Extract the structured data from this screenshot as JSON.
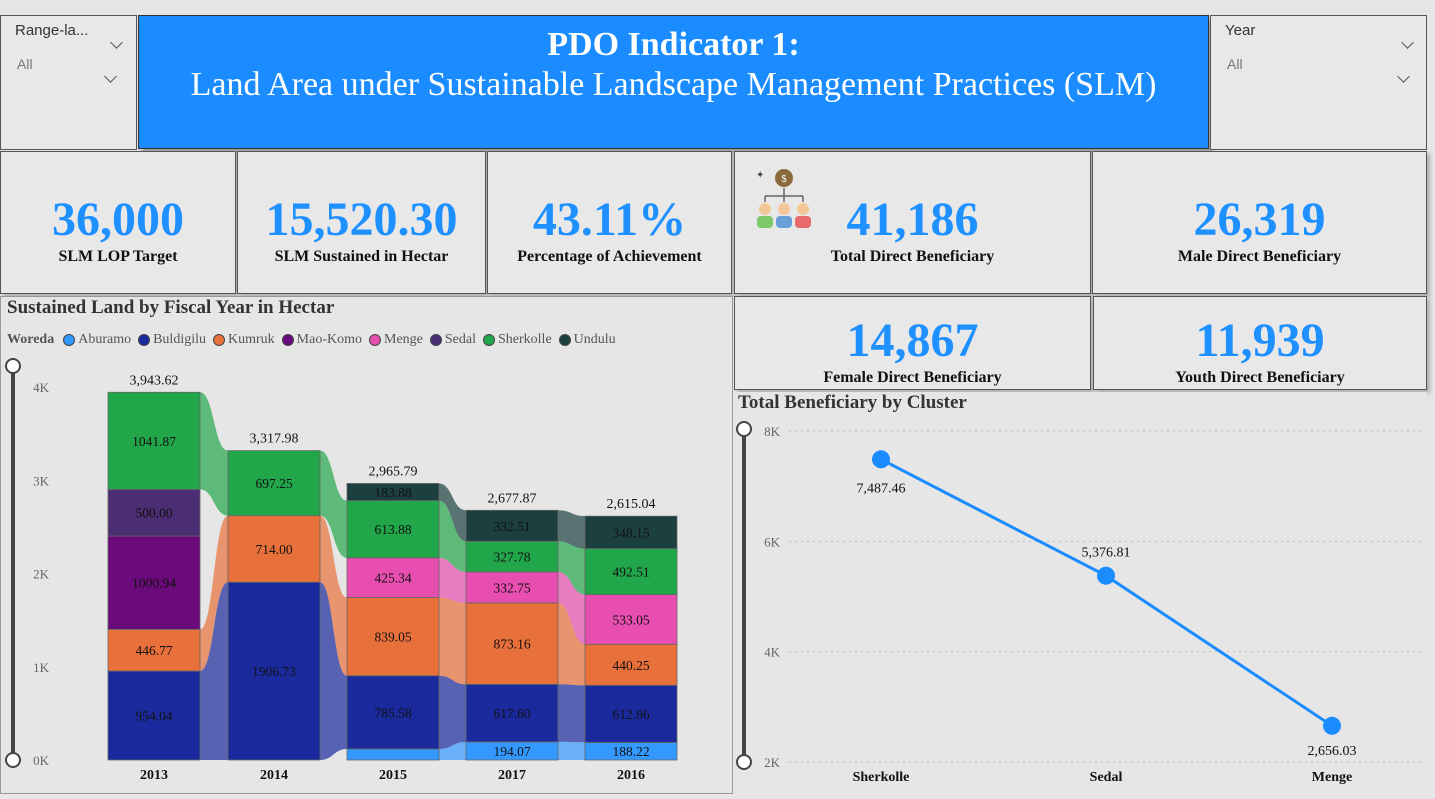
{
  "slicer_left": {
    "label": "Range-la...",
    "value": "All"
  },
  "slicer_right": {
    "label": "Year",
    "value": "All"
  },
  "header": {
    "line1": "PDO Indicator 1:",
    "line2": "Land Area under Sustainable Landscape Management Practices  (SLM)"
  },
  "kpis": {
    "lop_target": {
      "value": "36,000",
      "caption": "SLM LOP Target"
    },
    "sustained": {
      "value": "15,520.30",
      "caption": "SLM Sustained in Hectar"
    },
    "achievement": {
      "value": "43.11%",
      "caption": "Percentage of Achievement"
    },
    "total_benef": {
      "value": "41,186",
      "caption": "Total Direct Beneficiary",
      "icon": "beneficiary-group-icon"
    },
    "male_benef": {
      "value": "26,319",
      "caption": "Male Direct Beneficiary"
    },
    "female_benef": {
      "value": "14,867",
      "caption": "Female Direct Beneficiary"
    },
    "youth_benef": {
      "value": "11,939",
      "caption": "Youth Direct Beneficiary"
    }
  },
  "colors": {
    "accent": "#1a8cff",
    "Aburamo": "#3399ff",
    "Buldigilu": "#1a2a9c",
    "Kumruk": "#e8703a",
    "Mao-Komo": "#6b0a7a",
    "Menge": "#e84eb0",
    "Sedal": "#4a2d73",
    "Sherkolle": "#22a64a",
    "Undulu": "#1c4040"
  },
  "chart_data": [
    {
      "type": "bar",
      "stacked": true,
      "title": "Sustained Land by Fiscal Year in Hectar",
      "legend_title": "Woreda",
      "legend_position": "top-left",
      "categories": [
        "2013",
        "2014",
        "2015",
        "2017",
        "2016"
      ],
      "totals": [
        "3,943.62",
        "3,317.98",
        "2,965.79",
        "2,677.87",
        "2,615.04"
      ],
      "y_ticks": [
        "0K",
        "1K",
        "2K",
        "3K",
        "4K"
      ],
      "ylim": [
        0,
        4000
      ],
      "series": [
        {
          "name": "Aburamo",
          "values": [
            0,
            0,
            118.06,
            194.07,
            188.22
          ],
          "labels": [
            "",
            "",
            "",
            "194.07",
            "188.22"
          ]
        },
        {
          "name": "Buldigilu",
          "values": [
            954.04,
            1906.73,
            785.58,
            617.6,
            612.86
          ],
          "labels": [
            "954.04",
            "1906.73",
            "785.58",
            "617.60",
            "612.86"
          ]
        },
        {
          "name": "Kumruk",
          "values": [
            446.77,
            714.0,
            839.05,
            873.16,
            440.25
          ],
          "labels": [
            "446.77",
            "714.00",
            "839.05",
            "873.16",
            "440.25"
          ]
        },
        {
          "name": "Mao-Komo",
          "values": [
            1000.94,
            0,
            0,
            0,
            0
          ],
          "labels": [
            "1000.94",
            "",
            "",
            "",
            ""
          ]
        },
        {
          "name": "Menge",
          "values": [
            0,
            0,
            425.34,
            332.75,
            533.05
          ],
          "labels": [
            "",
            "",
            "425.34",
            "332.75",
            "533.05"
          ]
        },
        {
          "name": "Sedal",
          "values": [
            500.0,
            0,
            0,
            0,
            0
          ],
          "labels": [
            "500.00",
            "",
            "",
            "",
            ""
          ]
        },
        {
          "name": "Sherkolle",
          "values": [
            1041.87,
            697.25,
            613.88,
            327.78,
            492.51
          ],
          "labels": [
            "1041.87",
            "697.25",
            "613.88",
            "327.78",
            "492.51"
          ]
        },
        {
          "name": "Undulu",
          "values": [
            0,
            0,
            183.88,
            332.51,
            348.15
          ],
          "labels": [
            "",
            "",
            "183.88",
            "332.51",
            "348.15"
          ]
        }
      ]
    },
    {
      "type": "line",
      "title": "Total Beneficiary by Cluster",
      "categories": [
        "Sherkolle",
        "Sedal",
        "Menge"
      ],
      "values": [
        7487.46,
        5376.81,
        2656.03
      ],
      "labels": [
        "7,487.46",
        "5,376.81",
        "2,656.03"
      ],
      "y_ticks": [
        "2K",
        "4K",
        "6K",
        "8K"
      ],
      "ylim": [
        2000,
        8000
      ],
      "grid": true
    }
  ]
}
